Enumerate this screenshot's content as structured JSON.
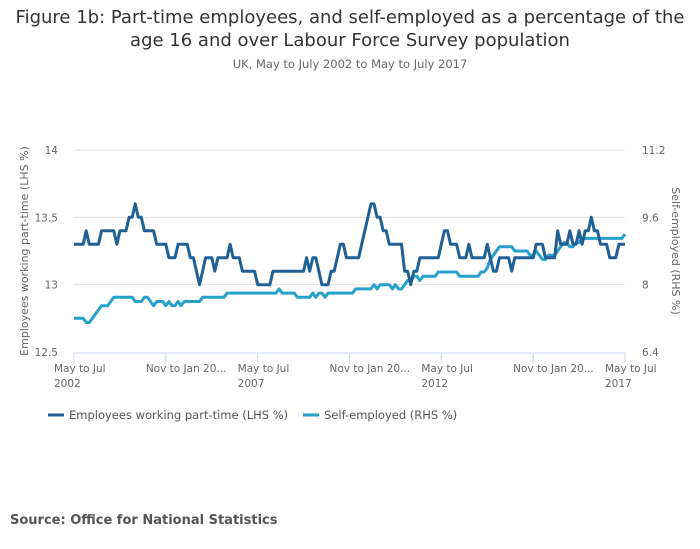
{
  "chart_data": {
    "type": "line",
    "title": "Figure 1b: Part-time employees, and self-employed as a percentage of the age 16 and over Labour Force Survey population",
    "subtitle": "UK, May to July 2002 to May to July 2017",
    "ylabel_left": "Employees working part-time (LHS %)",
    "ylabel_right": "Self-employed (RHS %)",
    "ylim_left": [
      12.5,
      14
    ],
    "ylim_right": [
      6.4,
      11.2
    ],
    "yticks_left": [
      "14",
      "13.5",
      "13",
      "12.5"
    ],
    "yticks_right": [
      "11.2",
      "9.6",
      "8",
      "6.4"
    ],
    "x_first": "May to Jul 2002",
    "x_last": "May to Jul 2017",
    "x_frequency": "monthly rolling quarter",
    "xticks": [
      {
        "line1": "May to Jul",
        "line2": "2002",
        "index": 0
      },
      {
        "line1": "Nov to Jan 20...",
        "line2": "",
        "index": 30
      },
      {
        "line1": "May to Jul",
        "line2": "2007",
        "index": 60
      },
      {
        "line1": "Nov to Jan 20...",
        "line2": "",
        "index": 90
      },
      {
        "line1": "May to Jul",
        "line2": "2012",
        "index": 120
      },
      {
        "line1": "Nov to Jan 20...",
        "line2": "",
        "index": 150
      },
      {
        "line1": "May to Jul",
        "line2": "2017",
        "index": 180
      }
    ],
    "grid": true,
    "legend_position": "bottom-left",
    "series": [
      {
        "name": "Employees working part-time (LHS %)",
        "axis": "left",
        "color": "#206095",
        "values": [
          13.3,
          13.3,
          13.3,
          13.3,
          13.4,
          13.3,
          13.3,
          13.3,
          13.3,
          13.4,
          13.4,
          13.4,
          13.4,
          13.4,
          13.3,
          13.4,
          13.4,
          13.4,
          13.5,
          13.5,
          13.6,
          13.5,
          13.5,
          13.4,
          13.4,
          13.4,
          13.4,
          13.3,
          13.3,
          13.3,
          13.3,
          13.2,
          13.2,
          13.2,
          13.3,
          13.3,
          13.3,
          13.3,
          13.2,
          13.2,
          13.1,
          13.0,
          13.1,
          13.2,
          13.2,
          13.2,
          13.1,
          13.2,
          13.2,
          13.2,
          13.2,
          13.3,
          13.2,
          13.2,
          13.2,
          13.1,
          13.1,
          13.1,
          13.1,
          13.1,
          13.0,
          13.0,
          13.0,
          13.0,
          13.0,
          13.1,
          13.1,
          13.1,
          13.1,
          13.1,
          13.1,
          13.1,
          13.1,
          13.1,
          13.1,
          13.1,
          13.2,
          13.1,
          13.2,
          13.2,
          13.1,
          13.0,
          13.0,
          13.0,
          13.1,
          13.1,
          13.2,
          13.3,
          13.3,
          13.2,
          13.2,
          13.2,
          13.2,
          13.2,
          13.3,
          13.4,
          13.5,
          13.6,
          13.6,
          13.5,
          13.5,
          13.4,
          13.4,
          13.3,
          13.3,
          13.3,
          13.3,
          13.3,
          13.1,
          13.1,
          13.0,
          13.1,
          13.1,
          13.2,
          13.2,
          13.2,
          13.2,
          13.2,
          13.2,
          13.2,
          13.3,
          13.4,
          13.4,
          13.3,
          13.3,
          13.3,
          13.2,
          13.2,
          13.2,
          13.3,
          13.2,
          13.2,
          13.2,
          13.2,
          13.2,
          13.3,
          13.2,
          13.1,
          13.1,
          13.2,
          13.2,
          13.2,
          13.2,
          13.1,
          13.2,
          13.2,
          13.2,
          13.2,
          13.2,
          13.2,
          13.2,
          13.3,
          13.3,
          13.3,
          13.2,
          13.2,
          13.2,
          13.2,
          13.4,
          13.3,
          13.3,
          13.3,
          13.4,
          13.3,
          13.3,
          13.4,
          13.3,
          13.4,
          13.4,
          13.5,
          13.4,
          13.4,
          13.3,
          13.3,
          13.3,
          13.2,
          13.2,
          13.2,
          13.3,
          13.3,
          13.3
        ]
      },
      {
        "name": "Self-employed (RHS %)",
        "axis": "right",
        "color": "#27a0cc",
        "values": [
          7.2,
          7.2,
          7.2,
          7.2,
          7.1,
          7.1,
          7.2,
          7.3,
          7.4,
          7.5,
          7.5,
          7.5,
          7.6,
          7.7,
          7.7,
          7.7,
          7.7,
          7.7,
          7.7,
          7.7,
          7.6,
          7.6,
          7.6,
          7.7,
          7.7,
          7.6,
          7.5,
          7.6,
          7.6,
          7.6,
          7.5,
          7.6,
          7.5,
          7.5,
          7.6,
          7.5,
          7.6,
          7.6,
          7.6,
          7.6,
          7.6,
          7.6,
          7.7,
          7.7,
          7.7,
          7.7,
          7.7,
          7.7,
          7.7,
          7.7,
          7.8,
          7.8,
          7.8,
          7.8,
          7.8,
          7.8,
          7.8,
          7.8,
          7.8,
          7.8,
          7.8,
          7.8,
          7.8,
          7.8,
          7.8,
          7.8,
          7.8,
          7.9,
          7.8,
          7.8,
          7.8,
          7.8,
          7.8,
          7.7,
          7.7,
          7.7,
          7.7,
          7.7,
          7.8,
          7.7,
          7.8,
          7.8,
          7.7,
          7.8,
          7.8,
          7.8,
          7.8,
          7.8,
          7.8,
          7.8,
          7.8,
          7.8,
          7.9,
          7.9,
          7.9,
          7.9,
          7.9,
          7.9,
          8.0,
          7.9,
          8.0,
          8.0,
          8.0,
          8.0,
          7.9,
          8.0,
          7.9,
          7.9,
          8.0,
          8.1,
          8.1,
          8.2,
          8.2,
          8.1,
          8.2,
          8.2,
          8.2,
          8.2,
          8.2,
          8.3,
          8.3,
          8.3,
          8.3,
          8.3,
          8.3,
          8.3,
          8.2,
          8.2,
          8.2,
          8.2,
          8.2,
          8.2,
          8.2,
          8.3,
          8.3,
          8.4,
          8.6,
          8.7,
          8.8,
          8.9,
          8.9,
          8.9,
          8.9,
          8.9,
          8.8,
          8.8,
          8.8,
          8.8,
          8.8,
          8.7,
          8.7,
          8.8,
          8.7,
          8.6,
          8.6,
          8.7,
          8.7,
          8.7,
          8.8,
          8.9,
          9.0,
          9.0,
          8.9,
          8.9,
          9.0,
          9.0,
          9.1,
          9.1,
          9.1,
          9.1,
          9.1,
          9.1,
          9.1,
          9.1,
          9.1,
          9.1,
          9.1,
          9.1,
          9.1,
          9.1,
          9.2
        ]
      }
    ]
  },
  "source": "Source: Office for National Statistics"
}
